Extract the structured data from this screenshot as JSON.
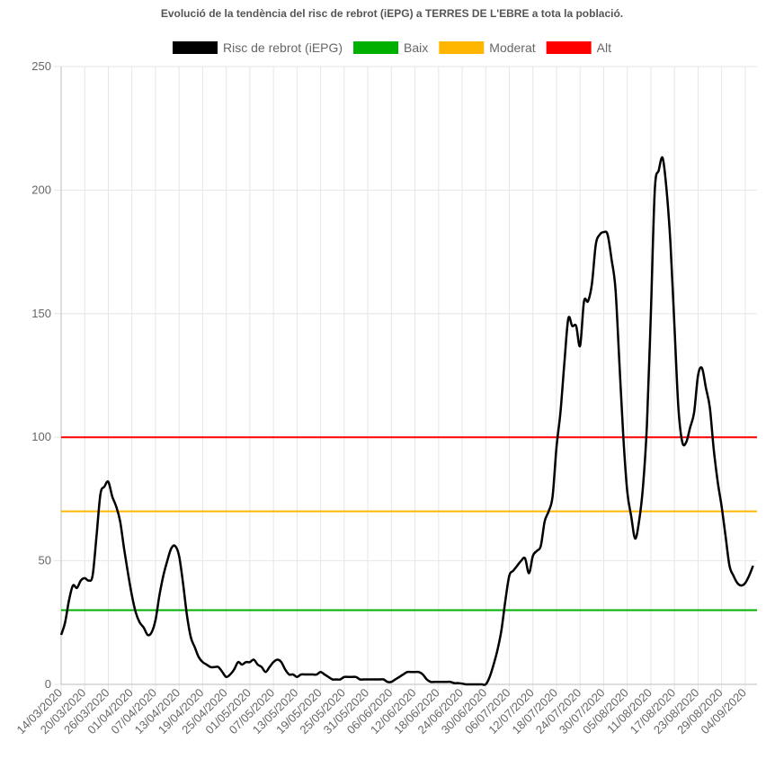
{
  "chart_data": {
    "type": "line",
    "title": "Evolució de la tendència del risc de rebrot (iEPG) a TERRES DE L'EBRE a tota la població.",
    "xlabel": "",
    "ylabel": "",
    "ylim": [
      0,
      250
    ],
    "yticks": [
      0,
      50,
      100,
      150,
      200,
      250
    ],
    "x_start": "14/03/2020",
    "x_end": "07/09/2020",
    "x_tick_labels": [
      "14/03/2020",
      "20/03/2020",
      "26/03/2020",
      "01/04/2020",
      "07/04/2020",
      "13/04/2020",
      "19/04/2020",
      "25/04/2020",
      "01/05/2020",
      "07/05/2020",
      "13/05/2020",
      "19/05/2020",
      "25/05/2020",
      "31/05/2020",
      "06/06/2020",
      "12/06/2020",
      "18/06/2020",
      "24/06/2020",
      "30/06/2020",
      "06/07/2020",
      "12/07/2020",
      "18/07/2020",
      "24/07/2020",
      "30/07/2020",
      "05/08/2020",
      "11/08/2020",
      "17/08/2020",
      "23/08/2020",
      "29/08/2020",
      "04/09/2020"
    ],
    "grid": true,
    "legend_position": "top",
    "series": [
      {
        "name": "Risc de rebrot (iEPG)",
        "color": "#000000",
        "points": [
          [
            "14/03/2020",
            20
          ],
          [
            "15/03/2020",
            25
          ],
          [
            "16/03/2020",
            34
          ],
          [
            "17/03/2020",
            40
          ],
          [
            "18/03/2020",
            39
          ],
          [
            "19/03/2020",
            42
          ],
          [
            "20/03/2020",
            43
          ],
          [
            "21/03/2020",
            42
          ],
          [
            "22/03/2020",
            44
          ],
          [
            "23/03/2020",
            60
          ],
          [
            "24/03/2020",
            77
          ],
          [
            "25/03/2020",
            80
          ],
          [
            "26/03/2020",
            82
          ],
          [
            "27/03/2020",
            76
          ],
          [
            "28/03/2020",
            72
          ],
          [
            "29/03/2020",
            66
          ],
          [
            "30/03/2020",
            55
          ],
          [
            "31/03/2020",
            45
          ],
          [
            "01/04/2020",
            36
          ],
          [
            "02/04/2020",
            29
          ],
          [
            "03/04/2020",
            25
          ],
          [
            "04/04/2020",
            23
          ],
          [
            "05/04/2020",
            20
          ],
          [
            "06/04/2020",
            21
          ],
          [
            "07/04/2020",
            26
          ],
          [
            "08/04/2020",
            36
          ],
          [
            "09/04/2020",
            44
          ],
          [
            "10/04/2020",
            50
          ],
          [
            "11/04/2020",
            55
          ],
          [
            "12/04/2020",
            56
          ],
          [
            "13/04/2020",
            52
          ],
          [
            "14/04/2020",
            41
          ],
          [
            "15/04/2020",
            28
          ],
          [
            "16/04/2020",
            19
          ],
          [
            "17/04/2020",
            15
          ],
          [
            "18/04/2020",
            11
          ],
          [
            "19/04/2020",
            9
          ],
          [
            "20/04/2020",
            8
          ],
          [
            "21/04/2020",
            7
          ],
          [
            "22/04/2020",
            7
          ],
          [
            "23/04/2020",
            7
          ],
          [
            "24/04/2020",
            5
          ],
          [
            "25/04/2020",
            3
          ],
          [
            "26/04/2020",
            4
          ],
          [
            "27/04/2020",
            6
          ],
          [
            "28/04/2020",
            9
          ],
          [
            "29/04/2020",
            8
          ],
          [
            "30/04/2020",
            9
          ],
          [
            "01/05/2020",
            9
          ],
          [
            "02/05/2020",
            10
          ],
          [
            "03/05/2020",
            8
          ],
          [
            "04/05/2020",
            7
          ],
          [
            "05/05/2020",
            5
          ],
          [
            "06/05/2020",
            7
          ],
          [
            "07/05/2020",
            9
          ],
          [
            "08/05/2020",
            10
          ],
          [
            "09/05/2020",
            9
          ],
          [
            "10/05/2020",
            6
          ],
          [
            "11/05/2020",
            4
          ],
          [
            "12/05/2020",
            4
          ],
          [
            "13/05/2020",
            3
          ],
          [
            "14/05/2020",
            4
          ],
          [
            "15/05/2020",
            4
          ],
          [
            "16/05/2020",
            4
          ],
          [
            "17/05/2020",
            4
          ],
          [
            "18/05/2020",
            4
          ],
          [
            "19/05/2020",
            5
          ],
          [
            "20/05/2020",
            4
          ],
          [
            "21/05/2020",
            3
          ],
          [
            "22/05/2020",
            2
          ],
          [
            "23/05/2020",
            2
          ],
          [
            "24/05/2020",
            2
          ],
          [
            "25/05/2020",
            3
          ],
          [
            "26/05/2020",
            3
          ],
          [
            "27/05/2020",
            3
          ],
          [
            "28/05/2020",
            3
          ],
          [
            "29/05/2020",
            2
          ],
          [
            "30/05/2020",
            2
          ],
          [
            "31/05/2020",
            2
          ],
          [
            "01/06/2020",
            2
          ],
          [
            "02/06/2020",
            2
          ],
          [
            "03/06/2020",
            2
          ],
          [
            "04/06/2020",
            2
          ],
          [
            "05/06/2020",
            1
          ],
          [
            "06/06/2020",
            1
          ],
          [
            "07/06/2020",
            2
          ],
          [
            "08/06/2020",
            3
          ],
          [
            "09/06/2020",
            4
          ],
          [
            "10/06/2020",
            5
          ],
          [
            "11/06/2020",
            5
          ],
          [
            "12/06/2020",
            5
          ],
          [
            "13/06/2020",
            5
          ],
          [
            "14/06/2020",
            4
          ],
          [
            "15/06/2020",
            2
          ],
          [
            "16/06/2020",
            1
          ],
          [
            "17/06/2020",
            1
          ],
          [
            "18/06/2020",
            1
          ],
          [
            "19/06/2020",
            1
          ],
          [
            "20/06/2020",
            1
          ],
          [
            "21/06/2020",
            1
          ],
          [
            "22/06/2020",
            0.5
          ],
          [
            "23/06/2020",
            0.5
          ],
          [
            "24/06/2020",
            0.3
          ],
          [
            "25/06/2020",
            0
          ],
          [
            "26/06/2020",
            0
          ],
          [
            "27/06/2020",
            0
          ],
          [
            "28/06/2020",
            0
          ],
          [
            "29/06/2020",
            0
          ],
          [
            "30/06/2020",
            0
          ],
          [
            "01/07/2020",
            3
          ],
          [
            "02/07/2020",
            8
          ],
          [
            "03/07/2020",
            14
          ],
          [
            "04/07/2020",
            22
          ],
          [
            "05/07/2020",
            34
          ],
          [
            "06/07/2020",
            44
          ],
          [
            "07/07/2020",
            46
          ],
          [
            "08/07/2020",
            48
          ],
          [
            "09/07/2020",
            50
          ],
          [
            "10/07/2020",
            51
          ],
          [
            "11/07/2020",
            45
          ],
          [
            "12/07/2020",
            52
          ],
          [
            "13/07/2020",
            54
          ],
          [
            "14/07/2020",
            56
          ],
          [
            "15/07/2020",
            66
          ],
          [
            "16/07/2020",
            70
          ],
          [
            "17/07/2020",
            76
          ],
          [
            "18/07/2020",
            96
          ],
          [
            "19/07/2020",
            110
          ],
          [
            "20/07/2020",
            130
          ],
          [
            "21/07/2020",
            148
          ],
          [
            "22/07/2020",
            145
          ],
          [
            "23/07/2020",
            145
          ],
          [
            "24/07/2020",
            137
          ],
          [
            "25/07/2020",
            155
          ],
          [
            "26/07/2020",
            155
          ],
          [
            "27/07/2020",
            162
          ],
          [
            "28/07/2020",
            178
          ],
          [
            "29/07/2020",
            182
          ],
          [
            "30/07/2020",
            183
          ],
          [
            "31/07/2020",
            182
          ],
          [
            "01/08/2020",
            172
          ],
          [
            "02/08/2020",
            160
          ],
          [
            "03/08/2020",
            130
          ],
          [
            "04/08/2020",
            100
          ],
          [
            "05/08/2020",
            78
          ],
          [
            "06/08/2020",
            68
          ],
          [
            "07/08/2020",
            59
          ],
          [
            "08/08/2020",
            66
          ],
          [
            "09/08/2020",
            80
          ],
          [
            "10/08/2020",
            105
          ],
          [
            "11/08/2020",
            150
          ],
          [
            "12/08/2020",
            200
          ],
          [
            "13/08/2020",
            208
          ],
          [
            "14/08/2020",
            213
          ],
          [
            "15/08/2020",
            200
          ],
          [
            "16/08/2020",
            178
          ],
          [
            "17/08/2020",
            145
          ],
          [
            "18/08/2020",
            112
          ],
          [
            "19/08/2020",
            98
          ],
          [
            "20/08/2020",
            98
          ],
          [
            "21/08/2020",
            104
          ],
          [
            "22/08/2020",
            110
          ],
          [
            "23/08/2020",
            125
          ],
          [
            "24/08/2020",
            128
          ],
          [
            "25/08/2020",
            120
          ],
          [
            "26/08/2020",
            112
          ],
          [
            "27/08/2020",
            95
          ],
          [
            "28/08/2020",
            82
          ],
          [
            "29/08/2020",
            72
          ],
          [
            "30/08/2020",
            60
          ],
          [
            "31/08/2020",
            48
          ],
          [
            "01/09/2020",
            44
          ],
          [
            "02/09/2020",
            41
          ],
          [
            "03/09/2020",
            40
          ],
          [
            "04/09/2020",
            41
          ],
          [
            "05/09/2020",
            44
          ],
          [
            "06/09/2020",
            48
          ]
        ]
      },
      {
        "name": "Baix",
        "color": "#00b000",
        "constant": 30
      },
      {
        "name": "Moderat",
        "color": "#ffb600",
        "constant": 70
      },
      {
        "name": "Alt",
        "color": "#ff0000",
        "constant": 100
      }
    ]
  }
}
